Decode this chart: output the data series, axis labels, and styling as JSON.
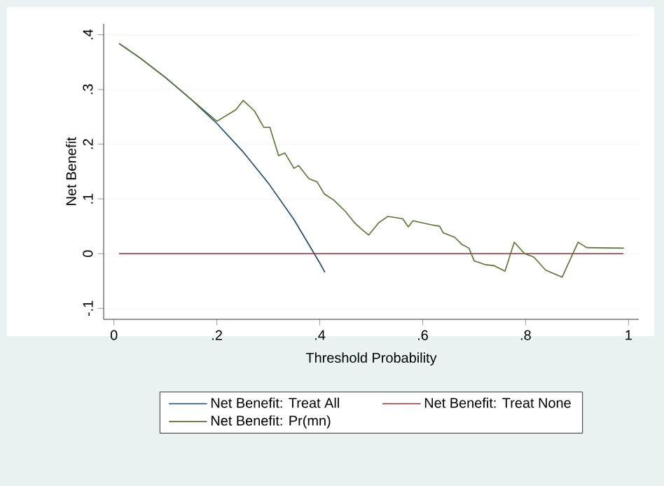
{
  "chart_data": {
    "type": "line",
    "xlabel": "Threshold Probability",
    "ylabel": "Net Benefit",
    "xlim": [
      -0.02,
      1.02
    ],
    "ylim": [
      -0.12,
      0.42
    ],
    "xticks": [
      0,
      {
        "value": 0.2,
        "label": ".2"
      },
      {
        "value": 0.4,
        "label": ".4"
      },
      {
        "value": 0.6,
        "label": ".6"
      },
      {
        "value": 0.8,
        "label": ".8"
      },
      1
    ],
    "yticks": [
      {
        "value": -0.1,
        "label": "-.1"
      },
      0,
      {
        "value": 0.1,
        "label": ".1"
      },
      {
        "value": 0.2,
        "label": ".2"
      },
      {
        "value": 0.3,
        "label": ".3"
      },
      {
        "value": 0.4,
        "label": ".4"
      }
    ],
    "grid": "y",
    "legend": "bottom",
    "line_style": "solid",
    "series": [
      {
        "name": "Net Benefit: Treat All",
        "color": "#1a476f",
        "x": [
          0.01,
          0.05,
          0.1,
          0.15,
          0.2,
          0.25,
          0.3,
          0.35,
          0.4,
          0.41
        ],
        "values": [
          0.384,
          0.358,
          0.322,
          0.282,
          0.238,
          0.187,
          0.129,
          0.062,
          -0.017,
          -0.034
        ]
      },
      {
        "name": "Net Benefit: Treat None",
        "color": "#90353b",
        "x": [
          0.01,
          0.99
        ],
        "values": [
          0,
          0
        ]
      },
      {
        "name": "Net Benefit: Pr(mn)",
        "color": "#55752f",
        "x": [
          0.01,
          0.05,
          0.1,
          0.15,
          0.2,
          0.237,
          0.251,
          0.273,
          0.291,
          0.303,
          0.32,
          0.332,
          0.35,
          0.359,
          0.379,
          0.395,
          0.409,
          0.427,
          0.45,
          0.468,
          0.481,
          0.495,
          0.514,
          0.532,
          0.561,
          0.572,
          0.581,
          0.615,
          0.633,
          0.64,
          0.662,
          0.676,
          0.69,
          0.7,
          0.721,
          0.739,
          0.76,
          0.778,
          0.798,
          0.816,
          0.839,
          0.871,
          0.902,
          0.919,
          0.991
        ],
        "values": [
          0.384,
          0.358,
          0.322,
          0.282,
          0.242,
          0.263,
          0.28,
          0.261,
          0.231,
          0.231,
          0.179,
          0.184,
          0.156,
          0.161,
          0.137,
          0.131,
          0.109,
          0.098,
          0.077,
          0.056,
          0.045,
          0.034,
          0.056,
          0.068,
          0.064,
          0.049,
          0.06,
          0.053,
          0.05,
          0.038,
          0.03,
          0.017,
          0.01,
          -0.013,
          -0.02,
          -0.022,
          -0.032,
          0.021,
          0,
          -0.006,
          -0.03,
          -0.043,
          0.021,
          0.011,
          0.01
        ]
      }
    ]
  }
}
